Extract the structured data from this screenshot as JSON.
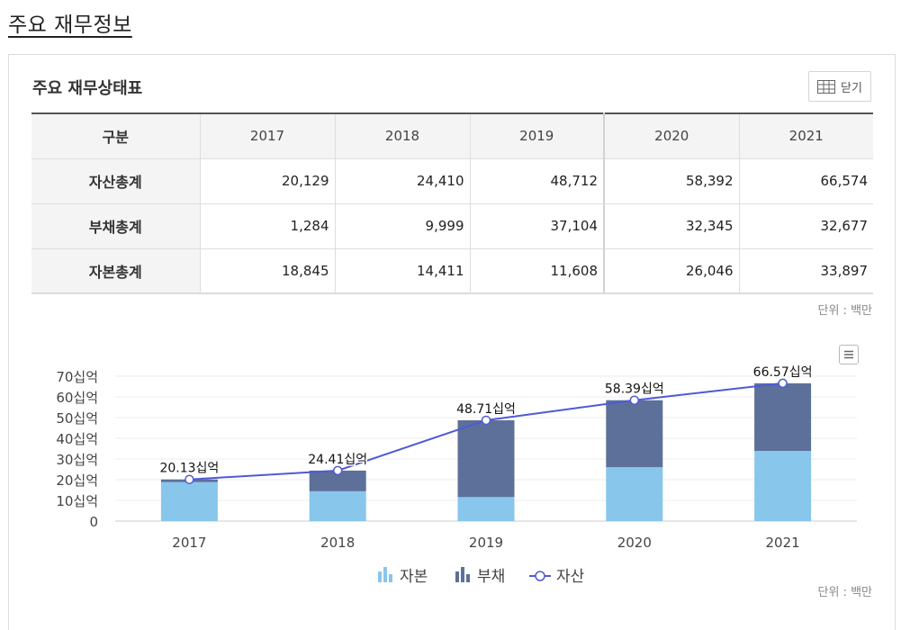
{
  "page_title": "주요 재무정보",
  "section_title": "주요 재무상태표",
  "close_label": "닫기",
  "table": {
    "header": [
      "구분",
      "2017",
      "2018",
      "2019",
      "2020",
      "2021"
    ],
    "rows": [
      {
        "label": "자산총계",
        "values": [
          "20,129",
          "24,410",
          "48,712",
          "58,392",
          "66,574"
        ]
      },
      {
        "label": "부채총계",
        "values": [
          "1,284",
          "9,999",
          "37,104",
          "32,345",
          "32,677"
        ]
      },
      {
        "label": "자본총계",
        "values": [
          "18,845",
          "14,411",
          "11,608",
          "26,046",
          "33,897"
        ]
      }
    ]
  },
  "unit_label": "단위 : 백만",
  "chart_data": {
    "type": "bar",
    "stacked": true,
    "categories": [
      "2017",
      "2018",
      "2019",
      "2020",
      "2021"
    ],
    "series": [
      {
        "name": "자본",
        "type": "bar",
        "color": "#88c6ec",
        "values": [
          18.845,
          14.411,
          11.608,
          26.046,
          33.897
        ]
      },
      {
        "name": "부채",
        "type": "bar",
        "color": "#5d7099",
        "values": [
          1.284,
          9.999,
          37.104,
          32.345,
          32.677
        ]
      },
      {
        "name": "자산",
        "type": "line",
        "color": "#5059d6",
        "values": [
          20.129,
          24.41,
          48.712,
          58.392,
          66.574
        ]
      }
    ],
    "data_labels": [
      "20.13십억",
      "24.41십억",
      "48.71십억",
      "58.39십억",
      "66.57십억"
    ],
    "y_ticks": [
      "0",
      "10십억",
      "20십억",
      "30십억",
      "40십억",
      "50십억",
      "60십억",
      "70십억"
    ],
    "ylim": [
      0,
      70
    ],
    "legend_position": "bottom-center",
    "unit_label": "단위 : 백만"
  }
}
